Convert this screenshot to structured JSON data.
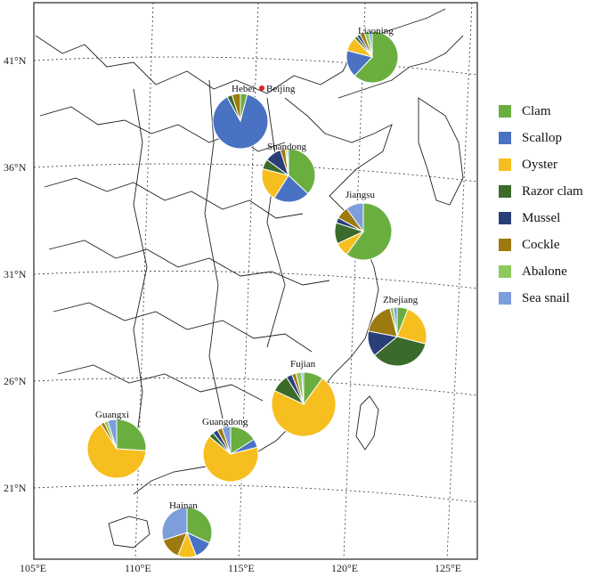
{
  "map": {
    "lat_labels": [
      "41°N",
      "36°N",
      "31°N",
      "26°N",
      "21°N"
    ],
    "lon_labels": [
      "105°E",
      "110°E",
      "115°E",
      "120°E",
      "125°E"
    ]
  },
  "colors": {
    "Clam": "#6aae3f",
    "Scallop": "#4a72c2",
    "Oyster": "#f7be1f",
    "Razor clam": "#3a6b2a",
    "Mussel": "#2a3f7a",
    "Cockle": "#9c7a10",
    "Abalone": "#8ec95e",
    "Sea snail": "#7c9edb"
  },
  "legend": {
    "items": [
      "Clam",
      "Scallop",
      "Oyster",
      "Razor clam",
      "Mussel",
      "Cockle",
      "Abalone",
      "Sea snail"
    ]
  },
  "capital": {
    "label": "Beijing"
  },
  "provinces": [
    {
      "name": "Liaoning",
      "shares": {
        "Clam": 0.62,
        "Scallop": 0.17,
        "Oyster": 0.09,
        "Razor clam": 0.02,
        "Mussel": 0.02,
        "Cockle": 0.03,
        "Abalone": 0.03,
        "Sea snail": 0.02
      }
    },
    {
      "name": "Hebei",
      "shares": {
        "Clam": 0.04,
        "Scallop": 0.88,
        "Oyster": 0.0,
        "Razor clam": 0.03,
        "Mussel": 0.0,
        "Cockle": 0.05,
        "Abalone": 0.0,
        "Sea snail": 0.0
      }
    },
    {
      "name": "Shandong",
      "shares": {
        "Clam": 0.37,
        "Scallop": 0.22,
        "Oyster": 0.2,
        "Razor clam": 0.06,
        "Mussel": 0.1,
        "Cockle": 0.03,
        "Abalone": 0.01,
        "Sea snail": 0.01
      }
    },
    {
      "name": "Jiangsu",
      "shares": {
        "Clam": 0.6,
        "Scallop": 0.0,
        "Oyster": 0.08,
        "Razor clam": 0.12,
        "Mussel": 0.03,
        "Cockle": 0.07,
        "Abalone": 0.0,
        "Sea snail": 0.1
      }
    },
    {
      "name": "Zhejiang",
      "shares": {
        "Clam": 0.06,
        "Scallop": 0.0,
        "Oyster": 0.23,
        "Razor clam": 0.35,
        "Mussel": 0.14,
        "Cockle": 0.18,
        "Abalone": 0.02,
        "Sea snail": 0.02
      }
    },
    {
      "name": "Fujian",
      "shares": {
        "Clam": 0.1,
        "Scallop": 0.0,
        "Oyster": 0.72,
        "Razor clam": 0.09,
        "Mussel": 0.03,
        "Cockle": 0.02,
        "Abalone": 0.03,
        "Sea snail": 0.01
      }
    },
    {
      "name": "Guangxi",
      "shares": {
        "Clam": 0.26,
        "Scallop": 0.0,
        "Oyster": 0.65,
        "Razor clam": 0.0,
        "Mussel": 0.0,
        "Cockle": 0.02,
        "Abalone": 0.02,
        "Sea snail": 0.05
      }
    },
    {
      "name": "Guangdong",
      "shares": {
        "Clam": 0.16,
        "Scallop": 0.05,
        "Oyster": 0.65,
        "Razor clam": 0.03,
        "Mussel": 0.03,
        "Cockle": 0.03,
        "Abalone": 0.0,
        "Sea snail": 0.05
      }
    },
    {
      "name": "Hainan",
      "shares": {
        "Clam": 0.32,
        "Scallop": 0.12,
        "Oyster": 0.12,
        "Razor clam": 0.0,
        "Mussel": 0.0,
        "Cockle": 0.14,
        "Abalone": 0.0,
        "Sea snail": 0.3
      }
    }
  ]
}
